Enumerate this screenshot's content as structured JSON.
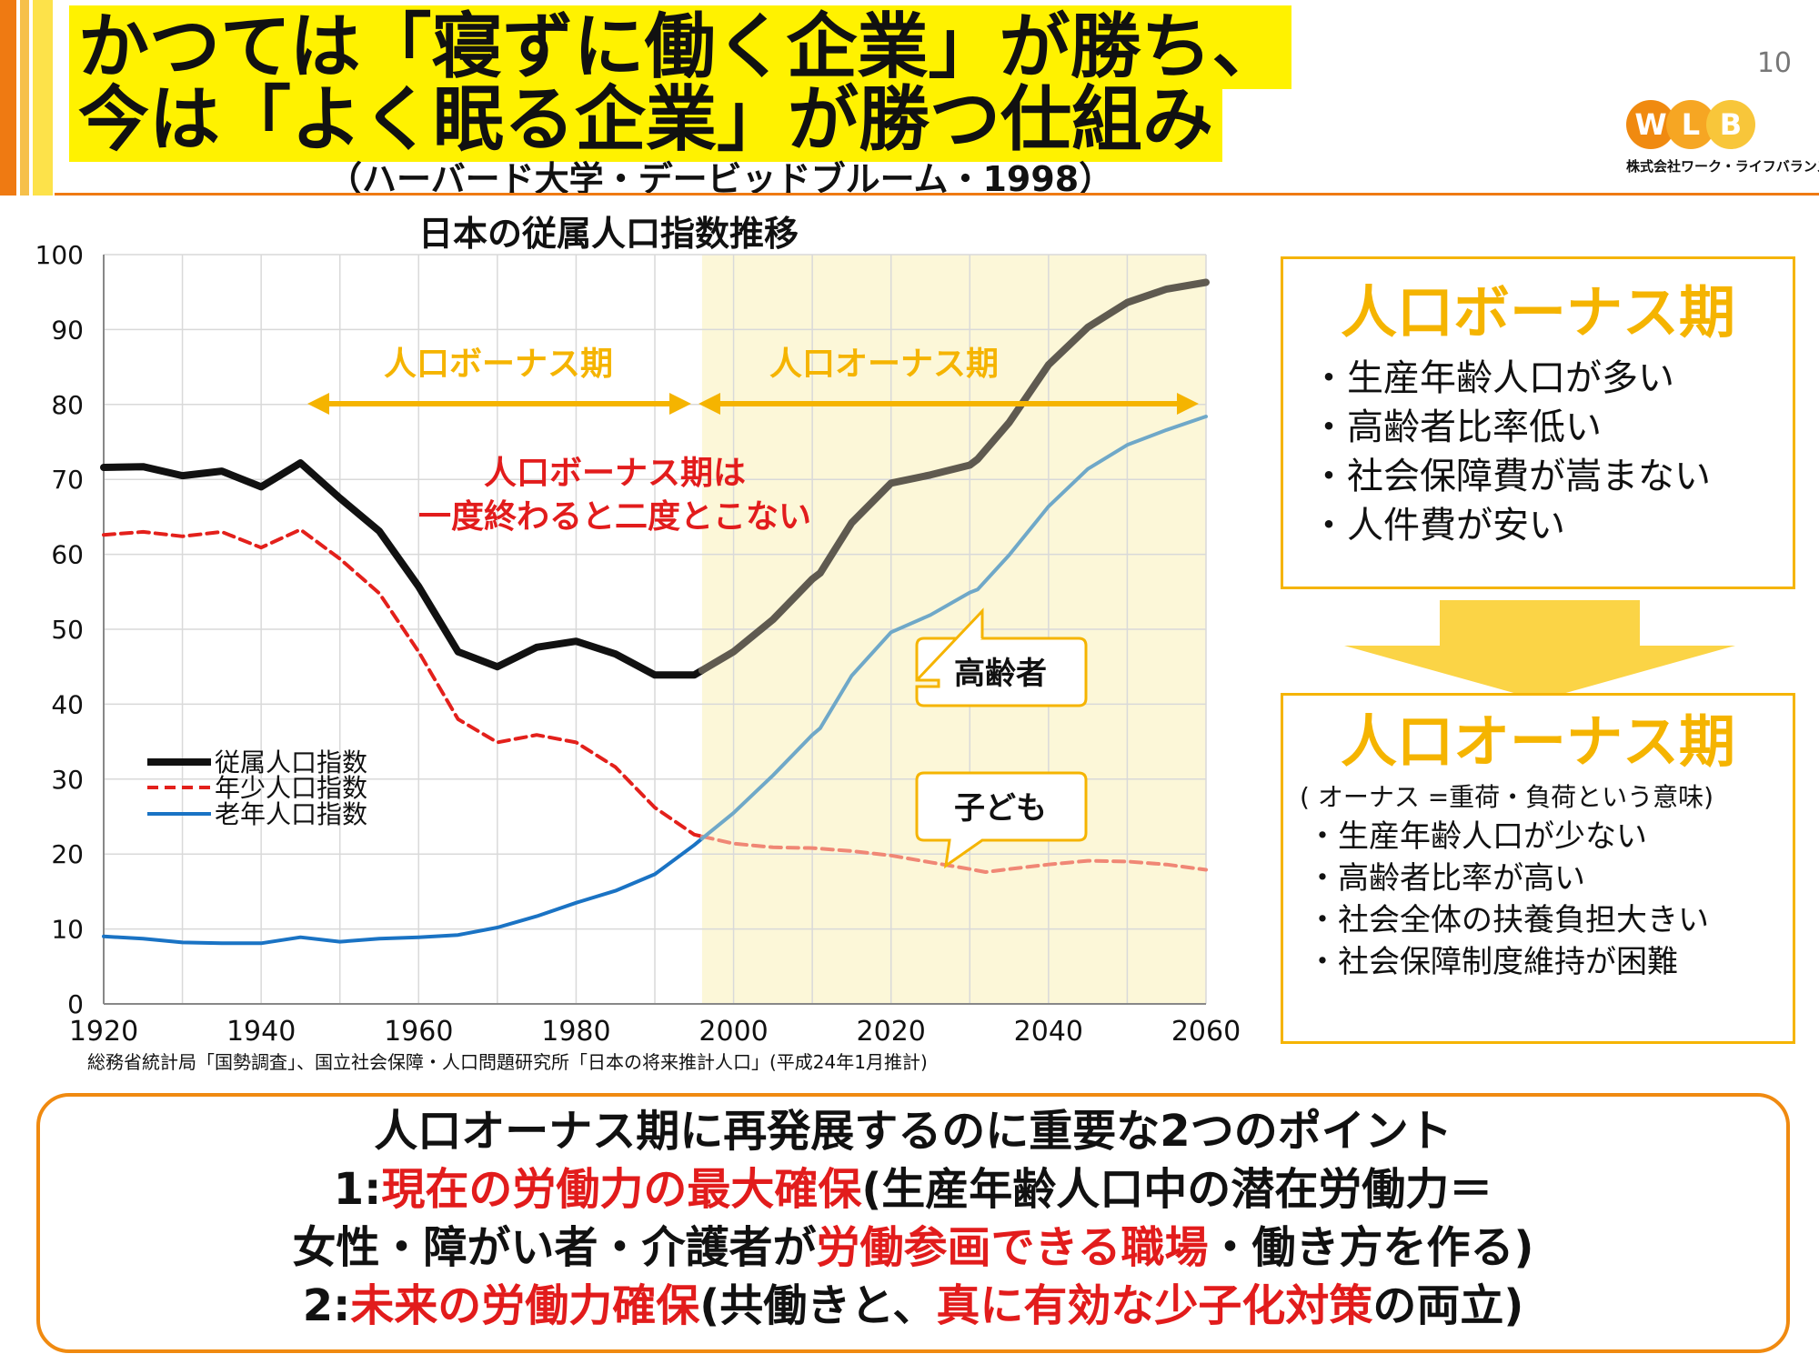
{
  "header": {
    "title_line1": "かつては「寝ずに働く企業」が勝ち、",
    "title_line2": "今は「よく眠る企業」が勝つ仕組み",
    "subtitle": "（ハーバード大学・デービッドブルーム・1998）",
    "page_number": "10",
    "logo": {
      "letters": [
        "W",
        "L",
        "B"
      ],
      "caption": "株式会社ワーク・ライフバランス"
    }
  },
  "chart_data": {
    "type": "line",
    "title": "日本の従属人口指数推移",
    "xlabel": "",
    "ylabel": "",
    "xlim": [
      1920,
      2060
    ],
    "ylim": [
      0,
      100
    ],
    "xticks": [
      "1920",
      "1940",
      "1960",
      "1980",
      "2000",
      "2020",
      "2040",
      "2060"
    ],
    "yticks": [
      "0",
      "10",
      "20",
      "30",
      "40",
      "50",
      "60",
      "70",
      "80",
      "90",
      "100"
    ],
    "shaded_region": [
      1996,
      2060
    ],
    "series": [
      {
        "name": "従属人口指数",
        "color": "#111111",
        "style": "solid",
        "projection_color": "#5f5a50",
        "x": [
          1920,
          1925,
          1930,
          1935,
          1940,
          1945,
          1950,
          1955,
          1960,
          1965,
          1970,
          1975,
          1980,
          1985,
          1990,
          1995,
          2000,
          2005,
          2010,
          2011,
          2015,
          2020,
          2025,
          2030,
          2031,
          2035,
          2040,
          2045,
          2050,
          2055,
          2060
        ],
        "y": [
          71.6,
          71.7,
          70.5,
          71.1,
          69,
          72.2,
          67.5,
          63.1,
          55.7,
          47,
          45,
          47.6,
          48.4,
          46.7,
          43.9,
          43.9,
          47,
          51.3,
          56.7,
          57.5,
          64.2,
          69.5,
          70.6,
          71.9,
          72.7,
          77.6,
          85.3,
          90.3,
          93.6,
          95.4,
          96.3
        ]
      },
      {
        "name": "年少人口指数",
        "color": "#e3201b",
        "style": "dashed",
        "projection_color": "#f08775",
        "x": [
          1920,
          1925,
          1930,
          1935,
          1940,
          1945,
          1950,
          1955,
          1960,
          1965,
          1970,
          1975,
          1980,
          1985,
          1990,
          1995,
          2000,
          2005,
          2010,
          2015,
          2020,
          2025,
          2030,
          2032,
          2035,
          2040,
          2045,
          2050,
          2055,
          2060
        ],
        "y": [
          62.6,
          63,
          62.4,
          63,
          60.9,
          63.3,
          59.4,
          54.8,
          47,
          38,
          34.9,
          35.9,
          34.9,
          31.6,
          26.2,
          22.6,
          21.4,
          20.9,
          20.8,
          20.4,
          19.8,
          18.9,
          18,
          17.6,
          18,
          18.6,
          19.1,
          19,
          18.6,
          17.9
        ]
      },
      {
        "name": "老年人口指数",
        "color": "#1a73c4",
        "style": "solid",
        "projection_color": "#6fa8c8",
        "x": [
          1920,
          1925,
          1930,
          1935,
          1940,
          1945,
          1950,
          1955,
          1960,
          1965,
          1970,
          1975,
          1980,
          1985,
          1990,
          1995,
          2000,
          2005,
          2010,
          2011,
          2015,
          2020,
          2025,
          2030,
          2031,
          2035,
          2040,
          2045,
          2050,
          2055,
          2060
        ],
        "y": [
          9,
          8.7,
          8.2,
          8.1,
          8.1,
          8.9,
          8.3,
          8.7,
          8.9,
          9.2,
          10.2,
          11.7,
          13.5,
          15.1,
          17.3,
          21.2,
          25.5,
          30.5,
          35.9,
          36.8,
          43.8,
          49.6,
          51.9,
          54.9,
          55.3,
          59.9,
          66.4,
          71.4,
          74.6,
          76.6,
          78.4
        ]
      }
    ],
    "legend": [
      "従属人口指数",
      "年少人口指数",
      "老年人口指数"
    ],
    "legend_position": "lower-left",
    "annotations": {
      "bonus_period": "人口ボーナス期",
      "onus_period": "人口オーナス期",
      "note_line1": "人口ボーナス期は",
      "note_line2": "一度終わると二度とこない",
      "callout_elderly": "高齢者",
      "callout_children": "子ども"
    },
    "colors": {
      "axis": "#888888",
      "grid": "#d9d9d9",
      "shade": "#fcf7d8",
      "arrow": "#f5b400",
      "callout_border": "#f5b400",
      "note": "#e21c1c"
    }
  },
  "source_note": "総務省統計局「国勢調査」、国立社会保障・人口問題研究所「日本の将来推計人口」(平成24年1月推計)",
  "bonus_box": {
    "title": "人口ボーナス期",
    "items": [
      "・生産年齢人口が多い",
      "・高齢者比率低い",
      "・社会保障費が嵩まない",
      "・人件費が安い"
    ]
  },
  "onus_box": {
    "title": "人口オーナス期",
    "note": "( オーナス =重荷・負荷という意味)",
    "items": [
      "・生産年齢人口が少ない",
      "・高齢者比率が高い",
      "・社会全体の扶養負担大きい",
      "・社会保障制度維持が困難"
    ]
  },
  "bottom": {
    "line1": "人口オーナス期に再発展するのに重要な2つのポイント",
    "line2_prefix": "1:",
    "line2_red": "現在の労働力の最大確保",
    "line2_rest": "(生産年齢人口中の潜在労働力＝",
    "line3_prefix": "女性・障がい者・介護者が",
    "line3_red": "労働参画できる職場",
    "line3_rest": "・働き方を作る)",
    "line4_prefix": "2:",
    "line4_red1": "未来の労働力確保",
    "line4_mid": "(共働きと、",
    "line4_red2": "真に有効な少子化対策",
    "line4_rest": "の両立)"
  },
  "theme": {
    "accent": "#ef7a12",
    "highlight": "#fff200",
    "box_border": "#f5b400",
    "emphasis_red": "#e21c1c"
  }
}
